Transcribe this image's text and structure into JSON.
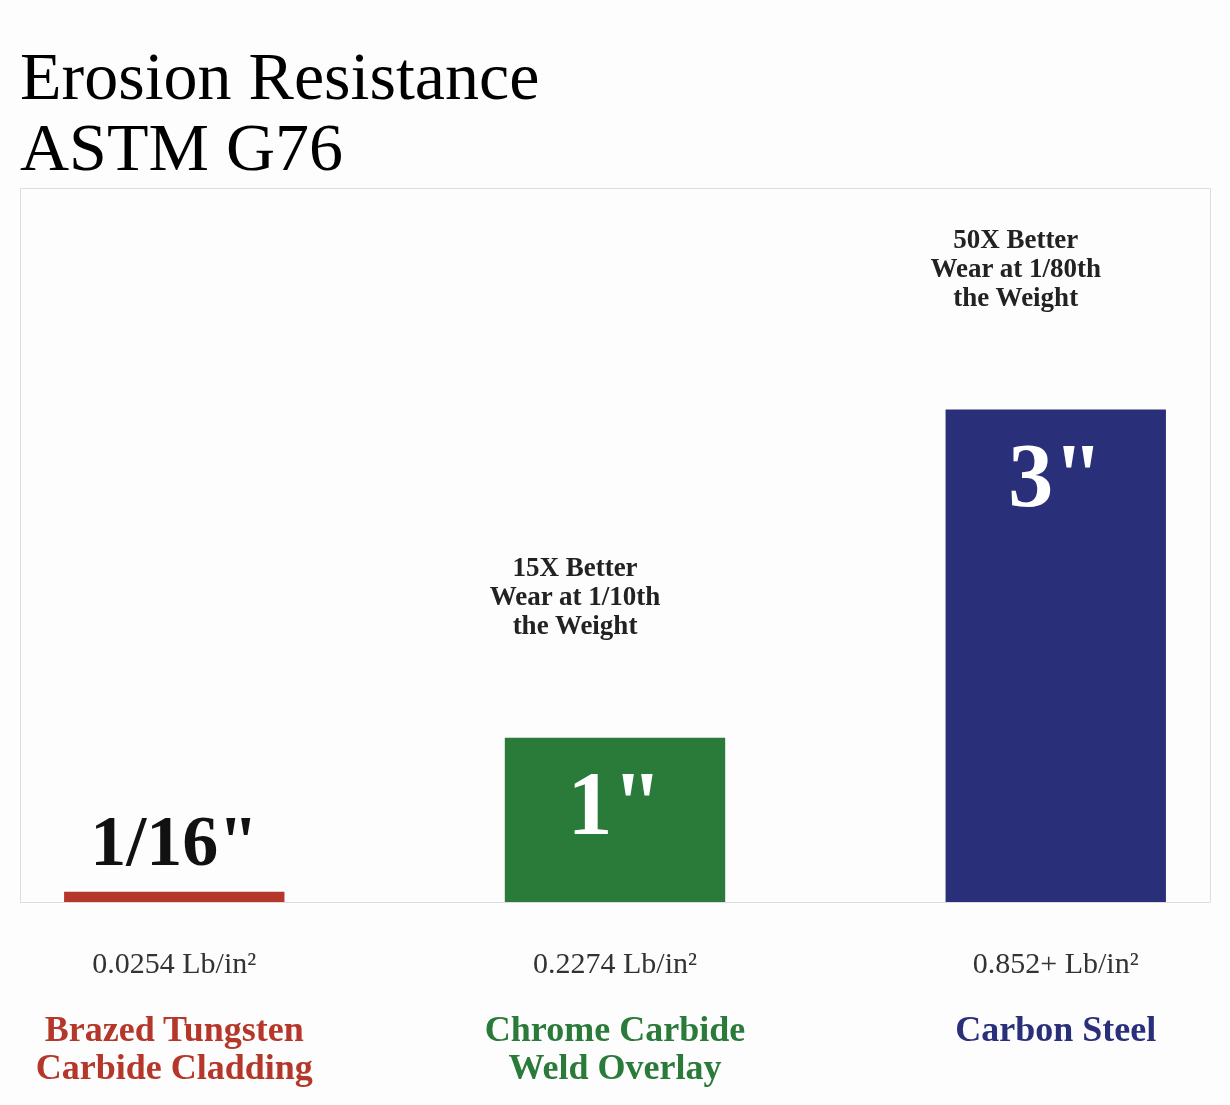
{
  "chart_data": {
    "type": "bar",
    "title": "Erosion Resistance",
    "subtitle": "ASTM G76",
    "categories": [
      "Brazed Tungsten Carbide Cladding",
      "Chrome Carbide Weld Overlay",
      "Carbon Steel"
    ],
    "values": [
      0.0625,
      1,
      3
    ],
    "value_labels": [
      "1/16\"",
      "1\"",
      "3\""
    ],
    "colors": [
      "#b5372a",
      "#2a7a3a",
      "#2a2f7a"
    ],
    "tick_labels": "x",
    "annotations": [
      "0.0254 Lb/in²",
      "0.2274 Lb/in²",
      "0.852+ Lb/in²",
      "15X Better\nWear at 1/10th\nthe Weight",
      "50X Better\nWear at 1/80th\nthe Weight"
    ]
  }
}
